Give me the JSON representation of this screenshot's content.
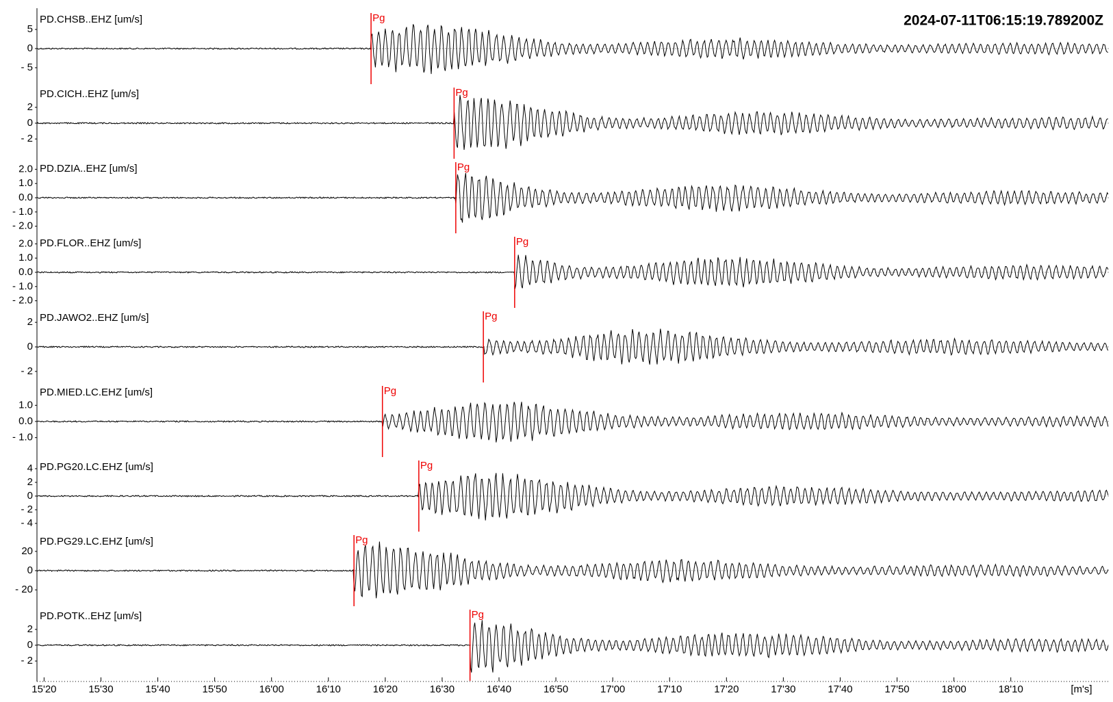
{
  "timestamp": "2024-07-11T06:15:19.789200Z",
  "x_axis": {
    "label": "[m's]",
    "xlim": [
      918.75,
      1107.25
    ],
    "xticks": [
      {
        "value": 920,
        "label": "15'20"
      },
      {
        "value": 930,
        "label": "15'30"
      },
      {
        "value": 940,
        "label": "15'40"
      },
      {
        "value": 950,
        "label": "15'50"
      },
      {
        "value": 960,
        "label": "16'00"
      },
      {
        "value": 970,
        "label": "16'10"
      },
      {
        "value": 980,
        "label": "16'20"
      },
      {
        "value": 990,
        "label": "16'30"
      },
      {
        "value": 1000,
        "label": "16'40"
      },
      {
        "value": 1010,
        "label": "16'50"
      },
      {
        "value": 1020,
        "label": "17'00"
      },
      {
        "value": 1030,
        "label": "17'10"
      },
      {
        "value": 1040,
        "label": "17'20"
      },
      {
        "value": 1050,
        "label": "17'30"
      },
      {
        "value": 1060,
        "label": "17'40"
      },
      {
        "value": 1070,
        "label": "17'50"
      },
      {
        "value": 1080,
        "label": "18'00"
      },
      {
        "value": 1090,
        "label": "18'10"
      }
    ]
  },
  "traces": [
    {
      "label": "PD.CHSB..EHZ [um/s]",
      "ylim": [
        -9.3,
        9.3
      ],
      "yticks": [
        5,
        0,
        {
          "value": -5,
          "label": "- 5"
        }
      ],
      "pick": {
        "label": "Pg",
        "time": 977.5
      }
    },
    {
      "label": "PD.CICH..EHZ [um/s]",
      "ylim": [
        -4.5,
        4.5
      ],
      "yticks": [
        2,
        0,
        {
          "value": -2,
          "label": "- 2"
        }
      ],
      "pick": {
        "label": "Pg",
        "time": 992.1
      }
    },
    {
      "label": "PD.DZIA..EHZ [um/s]",
      "ylim": [
        -2.5,
        2.5
      ],
      "yticks": [
        {
          "value": 2,
          "label": "2.0"
        },
        {
          "value": 1,
          "label": "1.0"
        },
        {
          "value": 0,
          "label": "0.0"
        },
        {
          "value": -1,
          "label": "- 1.0"
        },
        {
          "value": -2,
          "label": "- 2.0"
        }
      ],
      "pick": {
        "label": "Pg",
        "time": 992.4
      }
    },
    {
      "label": "PD.FLOR..EHZ [um/s]",
      "ylim": [
        -2.5,
        2.5
      ],
      "yticks": [
        {
          "value": 2,
          "label": "2.0"
        },
        {
          "value": 1,
          "label": "1.0"
        },
        {
          "value": 0,
          "label": "0.0"
        },
        {
          "value": -1,
          "label": "- 1.0"
        },
        {
          "value": -2,
          "label": "- 2.0"
        }
      ],
      "pick": {
        "label": "Pg",
        "time": 1002.75
      }
    },
    {
      "label": "PD.JAWO2..EHZ [um/s]",
      "ylim": [
        -2.9,
        2.9
      ],
      "yticks": [
        2,
        0,
        {
          "value": -2,
          "label": "- 2"
        }
      ],
      "pick": {
        "label": "Pg",
        "time": 997.25
      }
    },
    {
      "label": "PD.MIED.LC.EHZ [um/s]",
      "ylim": [
        -2.2,
        2.2
      ],
      "yticks": [
        {
          "value": 1,
          "label": "1.0"
        },
        {
          "value": 0,
          "label": "0.0"
        },
        {
          "value": -1,
          "label": "- 1.0"
        }
      ],
      "pick": {
        "label": "Pg",
        "time": 979.5
      }
    },
    {
      "label": "PD.PG20.LC.EHZ [um/s]",
      "ylim": [
        -5.2,
        5.2
      ],
      "yticks": [
        4,
        2,
        0,
        {
          "value": -2,
          "label": "- 2"
        },
        {
          "value": -4,
          "label": "- 4"
        }
      ],
      "pick": {
        "label": "Pg",
        "time": 985.9
      }
    },
    {
      "label": "PD.PG29.LC.EHZ [um/s]",
      "ylim": [
        -37,
        37
      ],
      "yticks": [
        20,
        0,
        {
          "value": -20,
          "label": "- 20"
        }
      ],
      "pick": {
        "label": "Pg",
        "time": 974.5
      }
    },
    {
      "label": "PD.POTK..EHZ [um/s]",
      "ylim": [
        -4.5,
        4.5
      ],
      "yticks": [
        2,
        0,
        {
          "value": -2,
          "label": "- 2"
        }
      ],
      "pick": {
        "label": "Pg",
        "time": 994.9
      }
    }
  ]
}
